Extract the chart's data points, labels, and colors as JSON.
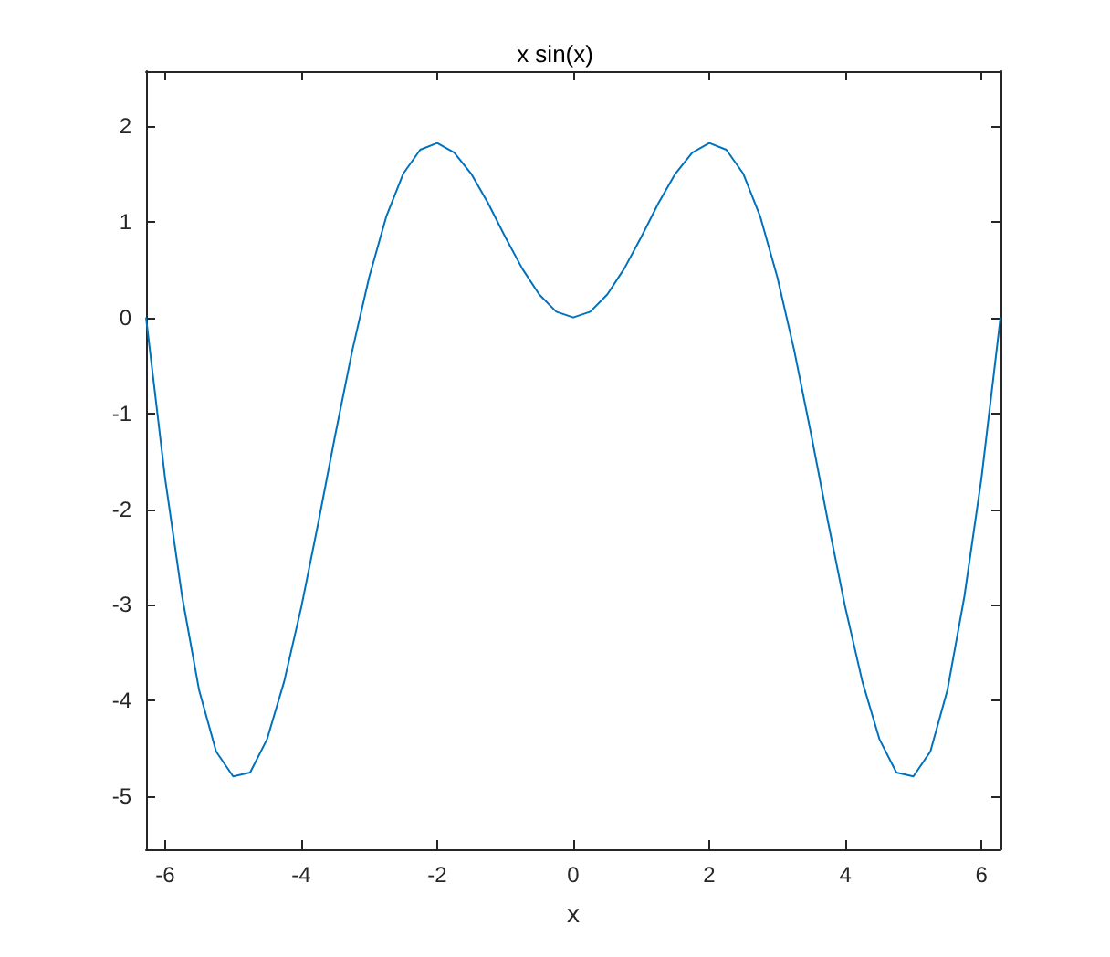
{
  "chart_data": {
    "type": "line",
    "title": "x sin(x)",
    "xlabel": "x",
    "x": [
      -6.28,
      -6,
      -5.75,
      -5.5,
      -5.25,
      -5,
      -4.75,
      -4.5,
      -4.25,
      -4,
      -3.75,
      -3.5,
      -3.25,
      -3,
      -2.75,
      -2.5,
      -2.25,
      -2,
      -1.75,
      -1.5,
      -1.25,
      -1,
      -0.75,
      -0.5,
      -0.25,
      0,
      0.25,
      0.5,
      0.75,
      1,
      1.25,
      1.5,
      1.75,
      2,
      2.25,
      2.5,
      2.75,
      3,
      3.25,
      3.5,
      3.75,
      4,
      4.25,
      4.5,
      4.75,
      5,
      5.25,
      5.5,
      5.75,
      6,
      6.28
    ],
    "series": [
      {
        "color": "#0072bd",
        "values": [
          0,
          -1.68,
          -2.91,
          -3.89,
          -4.53,
          -4.79,
          -4.75,
          -4.4,
          -3.8,
          -3.03,
          -2.15,
          -1.23,
          -0.35,
          0.42,
          1.05,
          1.5,
          1.75,
          1.82,
          1.72,
          1.5,
          1.19,
          0.84,
          0.51,
          0.24,
          0.06,
          0,
          0.06,
          0.24,
          0.51,
          0.84,
          1.19,
          1.5,
          1.72,
          1.82,
          1.75,
          1.5,
          1.05,
          0.42,
          -0.35,
          -1.23,
          -2.15,
          -3.03,
          -3.8,
          -4.4,
          -4.75,
          -4.79,
          -4.53,
          -3.89,
          -2.91,
          -1.68,
          0
        ]
      }
    ],
    "xlim": [
      -6.28,
      6.28
    ],
    "xticks": [
      -6,
      -4,
      -2,
      0,
      2,
      4,
      6
    ],
    "ylim": [
      -5.55,
      2.57
    ],
    "yticks": [
      -5,
      -4,
      -3,
      -2,
      -1,
      0,
      1,
      2
    ]
  }
}
